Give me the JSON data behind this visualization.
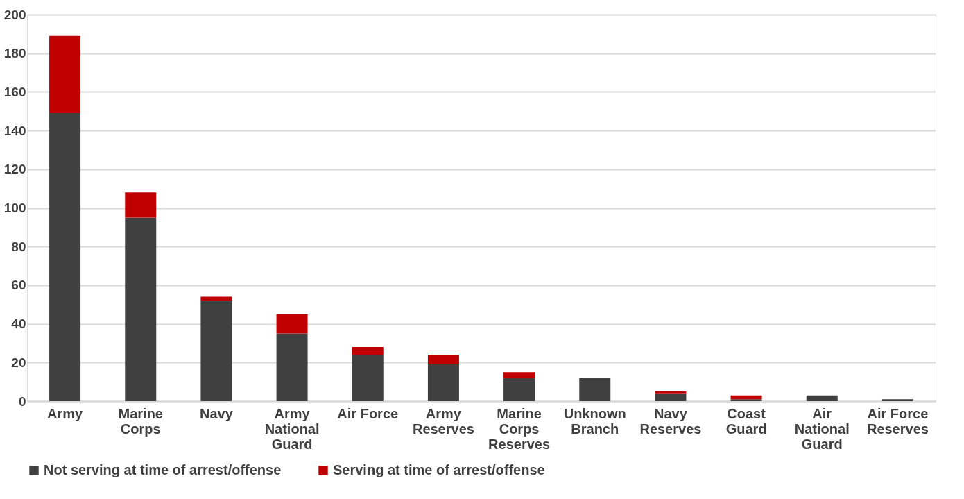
{
  "chart_data": {
    "type": "bar",
    "stacked": true,
    "categories": [
      "Army",
      "Marine Corps",
      "Navy",
      "Army National Guard",
      "Air Force",
      "Army Reserves",
      "Marine Corps Reserves",
      "Unknown Branch",
      "Navy Reserves",
      "Coast Guard",
      "Air National Guard",
      "Air Force Reserves"
    ],
    "series": [
      {
        "name": "Not serving at time of arrest/offense",
        "color": "#404040",
        "values": [
          149,
          95,
          52,
          35,
          24,
          19,
          12,
          12,
          4,
          1,
          3,
          1
        ]
      },
      {
        "name": "Serving at time of arrest/offense",
        "color": "#c00000",
        "values": [
          40,
          13,
          2,
          10,
          4,
          5,
          3,
          0,
          1,
          2,
          0,
          0
        ]
      }
    ],
    "ylim": [
      0,
      200
    ],
    "yticks": [
      0,
      20,
      40,
      60,
      80,
      100,
      120,
      140,
      160,
      180,
      200
    ],
    "grid": "y",
    "legend": "bottom"
  }
}
